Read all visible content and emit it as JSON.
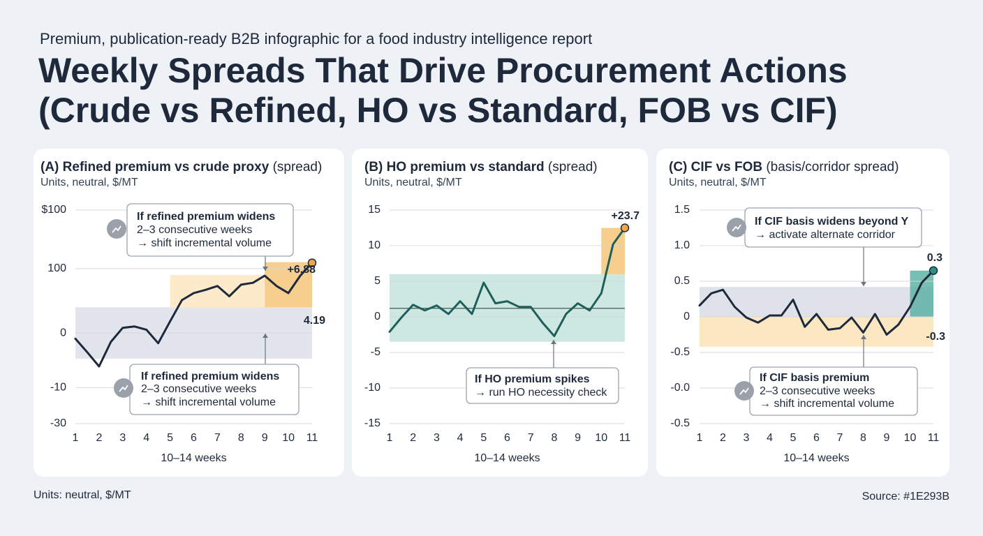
{
  "header": {
    "subtitle": "Premium, publication-ready B2B infographic for a food industry intelligence report",
    "title_lines": [
      "Weekly Spreads That Drive Procurement Actions",
      "(Crude vs Refined, HO vs Standard, FOB vs CIF)"
    ]
  },
  "chart_data": [
    {
      "type": "line",
      "title": "(A) Refined premium vs crude proxy",
      "title_suffix": " (spread)",
      "subtitle": "Units, neutral, $/MT",
      "x_label": "10–14 weeks",
      "x": [
        1,
        1.5,
        2,
        2.5,
        3,
        3.5,
        4,
        4.5,
        5,
        5.5,
        6,
        6.5,
        7,
        7.5,
        8,
        8.5,
        9,
        9.5,
        10,
        10.5,
        11
      ],
      "series": [
        {
          "color": "#1e293b",
          "marker_color": "#f0a64a",
          "values": [
            -9,
            -30,
            -52,
            -14,
            8,
            10,
            5,
            -16,
            18,
            51,
            62,
            67,
            73,
            57,
            75,
            78,
            89,
            73,
            62,
            89,
            109
          ]
        }
      ],
      "xlim": [
        1,
        11
      ],
      "xticks": [
        1,
        2,
        3,
        4,
        5,
        6,
        7,
        8,
        9,
        10,
        11
      ],
      "ylim": [
        -141,
        191
      ],
      "yticks": [
        {
          "value": 191,
          "label": "$100"
        },
        100,
        0,
        {
          "value": -85,
          "label": "-10"
        },
        {
          "value": -141,
          "label": "-30"
        }
      ],
      "grid": true,
      "bands": [
        {
          "x": [
            1,
            11
          ],
          "y": [
            -40,
            40
          ],
          "color": "#dde1e7"
        },
        {
          "x": [
            5,
            9
          ],
          "y": [
            40,
            90
          ],
          "color": "#fbe6c2"
        },
        {
          "x": [
            9,
            11
          ],
          "y": [
            40,
            110
          ],
          "color": "#f4c679"
        }
      ],
      "annotations": [
        "+6.88",
        "4.19"
      ],
      "callouts": [
        {
          "lines": [
            "If refined premium widens",
            "2–3 consecutive weeks",
            "→ shift incremental volume"
          ]
        },
        {
          "lines": [
            "If refined premium widens",
            "2–3 consecutive weeks",
            "→ shift incremental volume"
          ]
        }
      ]
    },
    {
      "type": "line",
      "title": "(B) HO premium vs standard",
      "title_suffix": " (spread)",
      "subtitle": "Units, neutral, $/MT",
      "x_label": "10–14 weeks",
      "x": [
        1,
        1.5,
        2,
        2.5,
        3,
        3.5,
        4,
        4.5,
        5,
        5.5,
        6,
        6.5,
        7,
        7.5,
        8,
        8.5,
        9,
        9.5,
        10,
        10.5,
        11
      ],
      "series": [
        {
          "color": "#1f5f5a",
          "marker_color": "#f0a64a",
          "values": [
            -2.1,
            -0.1,
            1.7,
            0.9,
            1.6,
            0.4,
            2.2,
            0.4,
            4.8,
            1.9,
            2.2,
            1.4,
            1.4,
            -0.8,
            -2.7,
            0.4,
            1.9,
            0.9,
            3.3,
            10.2,
            12.5
          ]
        }
      ],
      "xlim": [
        1,
        11
      ],
      "xticks": [
        1,
        2,
        3,
        4,
        5,
        6,
        7,
        8,
        9,
        10,
        11
      ],
      "ylim": [
        -15,
        15
      ],
      "yticks": [
        15,
        10,
        5,
        0,
        -5,
        -10,
        -15
      ],
      "grid": true,
      "ref_line": 1.2,
      "bands": [
        {
          "x": [
            1,
            11
          ],
          "y": [
            -3.5,
            6
          ],
          "color": "#c4e4dc"
        },
        {
          "x": [
            10,
            11
          ],
          "y": [
            6,
            12.5
          ],
          "color": "#f4c679"
        }
      ],
      "annotations": [
        "+23.7"
      ],
      "callouts": [
        {
          "lines": [
            "If HO premium spikes",
            "→ run HO necessity check"
          ]
        }
      ]
    },
    {
      "type": "line",
      "title": "(C) CIF vs FOB",
      "title_suffix": " (basis/corridor spread)",
      "subtitle": "Units, neutral, $/MT",
      "x_label": "10–14 weeks",
      "x": [
        1,
        1.5,
        2,
        2.5,
        3,
        3.5,
        4,
        4.5,
        5,
        5.5,
        6,
        6.5,
        7,
        7.5,
        8,
        8.5,
        9,
        9.5,
        10,
        10.5,
        11
      ],
      "series": [
        {
          "color": "#1e293b",
          "marker_color": "#2f8f86",
          "values": [
            0.16,
            0.33,
            0.38,
            0.14,
            -0.01,
            -0.08,
            0.02,
            0.02,
            0.24,
            -0.14,
            0.04,
            -0.18,
            -0.16,
            -0.01,
            -0.22,
            0.04,
            -0.25,
            -0.11,
            0.14,
            0.48,
            0.65
          ]
        }
      ],
      "xlim": [
        1,
        11
      ],
      "xticks": [
        1,
        2,
        3,
        4,
        5,
        6,
        7,
        8,
        9,
        10,
        11
      ],
      "ylim": [
        -1.5,
        1.5
      ],
      "yticks": [
        1.5,
        {
          "value": 1,
          "label": "1.0"
        },
        0.5,
        0,
        -0.5,
        {
          "value": -1,
          "label": "-0.0"
        },
        {
          "value": -1.5,
          "label": "-0.5"
        }
      ],
      "grid": true,
      "bands": [
        {
          "x": [
            1,
            11
          ],
          "y": [
            0,
            0.42
          ],
          "color": "#d9dde4"
        },
        {
          "x": [
            1,
            11
          ],
          "y": [
            -0.42,
            0
          ],
          "color": "#fbe3b8"
        },
        {
          "x": [
            10,
            11
          ],
          "y": [
            0,
            0.65
          ],
          "color": "#5fb3a6"
        }
      ],
      "annotations": [
        "0.3",
        "-0.3"
      ],
      "callouts": [
        {
          "lines": [
            "If CIF basis widens beyond Y",
            "→ activate alternate corridor"
          ]
        },
        {
          "lines": [
            "If CIF basis premium",
            "2–3 consecutive weeks",
            "→ shift incremental volume"
          ]
        }
      ]
    }
  ],
  "footer": {
    "left": "Units: neutral, $/MT",
    "right": "Source: #1E293B"
  }
}
